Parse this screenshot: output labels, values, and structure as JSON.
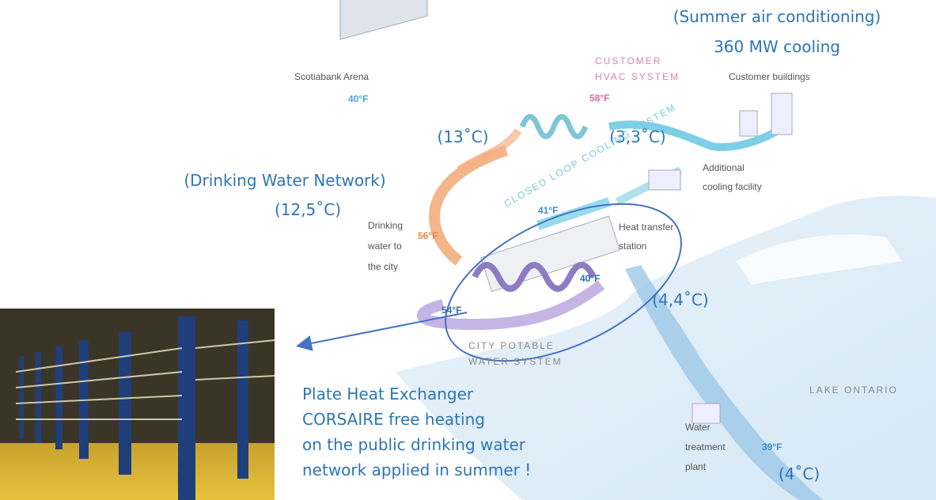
{
  "annotations": {
    "summer": "(Summer air conditioning)",
    "cooling": "360 MW cooling",
    "t13": "(13˚C)",
    "t33": "(3,3˚C)",
    "network": "(Drinking Water Network)",
    "t125": "(12,5˚C)",
    "t44": "(4,4˚C)",
    "t4": "(4˚C)",
    "exchanger": [
      "Plate Heat Exchanger",
      "CORSAIRE free heating",
      "on the public drinking water",
      "network applied in summer !"
    ]
  },
  "labels": {
    "arena": "Scotiabank Arena",
    "hvac": [
      "CUSTOMER",
      "HVAC SYSTEM"
    ],
    "buildings": "Customer buildings",
    "f40a": "40°F",
    "f58": "58°F",
    "loop": "CLOSED LOOP COOLING SYSTEM",
    "facility": [
      "Additional",
      "cooling facility"
    ],
    "drinking": [
      "Drinking",
      "water to",
      "the city"
    ],
    "f56": "56°F",
    "f41": "41°F",
    "station": [
      "Heat transfer",
      "station"
    ],
    "f40b": "40°F",
    "f54": "54°F",
    "potable": [
      "CITY POTABLE",
      "WATER SYSTEM"
    ],
    "lake": "LAKE ONTARIO",
    "plant": [
      "Water",
      "treatment",
      "plant"
    ],
    "f39": "39°F"
  }
}
